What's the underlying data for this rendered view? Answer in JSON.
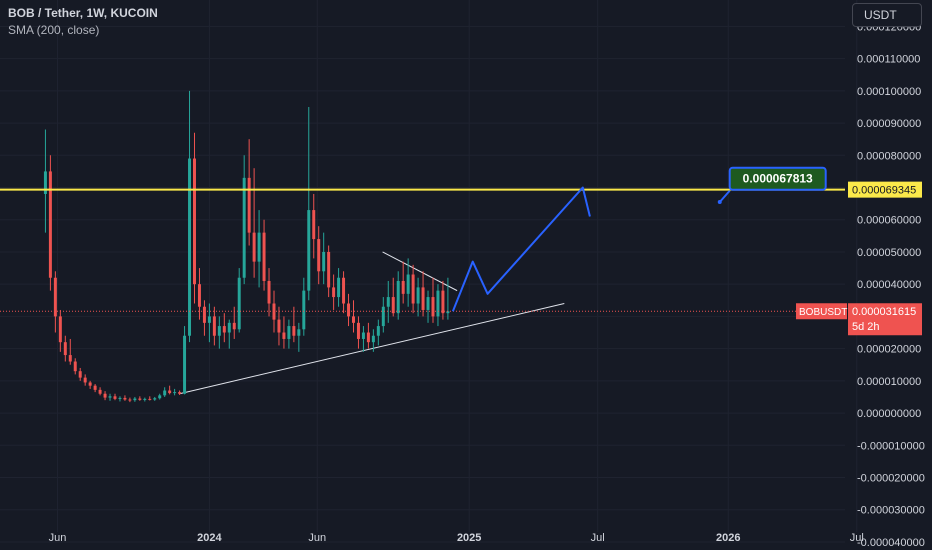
{
  "header": {
    "title": "BOB / Tether, 1W, KUCOIN",
    "indicator": "SMA (200, close)"
  },
  "currency_button": "USDT",
  "colors": {
    "background": "#161a25",
    "grid": "#1f2330",
    "up": "#26a69a",
    "down": "#ef5350",
    "level_line": "#fbe94a",
    "projection": "#2962ff",
    "target_box": "#1e5a20",
    "trendline": "#e0e3eb"
  },
  "chart_data": {
    "type": "candlestick",
    "symbol": "BOBUSDT",
    "y_tick_labels": [
      "0.000120000",
      "0.000110000",
      "0.000100000",
      "0.000090000",
      "0.000080000",
      "0.000070000",
      "0.000060000",
      "0.000050000",
      "0.000040000",
      "0.000030000",
      "0.000020000",
      "0.000010000",
      "0.000000000",
      "-0.000010000",
      "-0.000020000",
      "-0.000030000",
      "-0.000040000"
    ],
    "y_ticks": [
      0.00012,
      0.00011,
      0.0001,
      9e-05,
      8e-05,
      7e-05,
      6e-05,
      5e-05,
      4e-05,
      3e-05,
      2e-05,
      1e-05,
      0,
      -1e-05,
      -2e-05,
      -3e-05,
      -4e-05
    ],
    "ylim": [
      -4.25e-05,
      0.0001282
    ],
    "x_tick_labels": [
      "Jun",
      "2024",
      "Jun",
      "2025",
      "Jul",
      "2026",
      "Jul"
    ],
    "x_ticks": [
      "2023-06-01",
      "2024-01-01",
      "2024-06-01",
      "2025-01-01",
      "2025-07-01",
      "2026-01-01",
      "2026-07-01"
    ],
    "xlim": [
      "2023-03-12",
      "2026-10-15"
    ],
    "price_label": {
      "symbol": "BOBUSDT",
      "value": "0.000031615",
      "countdown": "5d 2h"
    },
    "horizontal_level": {
      "value": 6.9345e-05,
      "label": "0.000069345"
    },
    "target_annotation": {
      "label": "0.000067813"
    },
    "candles": [
      {
        "t": "2023-05-15",
        "o": 6.8e-05,
        "h": 8.8e-05,
        "l": 5.6e-05,
        "c": 7.5e-05
      },
      {
        "t": "2023-05-22",
        "o": 7.5e-05,
        "h": 8e-05,
        "l": 3.8e-05,
        "c": 4.2e-05
      },
      {
        "t": "2023-05-29",
        "o": 4.2e-05,
        "h": 4.4e-05,
        "l": 2.5e-05,
        "c": 3e-05
      },
      {
        "t": "2023-06-05",
        "o": 3e-05,
        "h": 3.2e-05,
        "l": 1.9e-05,
        "c": 2.2e-05
      },
      {
        "t": "2023-06-12",
        "o": 2.2e-05,
        "h": 2.4e-05,
        "l": 1.6e-05,
        "c": 1.8e-05
      },
      {
        "t": "2023-06-19",
        "o": 1.8e-05,
        "h": 2.3e-05,
        "l": 1.5e-05,
        "c": 1.6e-05
      },
      {
        "t": "2023-06-26",
        "o": 1.6e-05,
        "h": 1.7e-05,
        "l": 1.2e-05,
        "c": 1.3e-05
      },
      {
        "t": "2023-07-03",
        "o": 1.3e-05,
        "h": 1.4e-05,
        "l": 1e-05,
        "c": 1.1e-05
      },
      {
        "t": "2023-07-10",
        "o": 1.1e-05,
        "h": 1.2e-05,
        "l": 8.5e-06,
        "c": 9.5e-06
      },
      {
        "t": "2023-07-17",
        "o": 9.5e-06,
        "h": 1e-05,
        "l": 7.5e-06,
        "c": 8.5e-06
      },
      {
        "t": "2023-07-24",
        "o": 8.5e-06,
        "h": 9e-06,
        "l": 6.5e-06,
        "c": 7.2e-06
      },
      {
        "t": "2023-07-31",
        "o": 7.2e-06,
        "h": 8e-06,
        "l": 5.5e-06,
        "c": 6e-06
      },
      {
        "t": "2023-08-07",
        "o": 6e-06,
        "h": 6.8e-06,
        "l": 4e-06,
        "c": 4.8e-06
      },
      {
        "t": "2023-08-14",
        "o": 4.8e-06,
        "h": 6e-06,
        "l": 3.8e-06,
        "c": 5.2e-06
      },
      {
        "t": "2023-08-21",
        "o": 5.2e-06,
        "h": 6e-06,
        "l": 4e-06,
        "c": 4.4e-06
      },
      {
        "t": "2023-08-28",
        "o": 4.4e-06,
        "h": 5.2e-06,
        "l": 3.6e-06,
        "c": 4.7e-06
      },
      {
        "t": "2023-09-04",
        "o": 4.7e-06,
        "h": 5.5e-06,
        "l": 3.8e-06,
        "c": 4.2e-06
      },
      {
        "t": "2023-09-11",
        "o": 4.2e-06,
        "h": 4.8e-06,
        "l": 3.4e-06,
        "c": 4e-06
      },
      {
        "t": "2023-09-18",
        "o": 4e-06,
        "h": 5e-06,
        "l": 3.5e-06,
        "c": 4.5e-06
      },
      {
        "t": "2023-09-25",
        "o": 4.5e-06,
        "h": 5.2e-06,
        "l": 3.8e-06,
        "c": 4.1e-06
      },
      {
        "t": "2023-10-02",
        "o": 4.1e-06,
        "h": 4.8e-06,
        "l": 3.6e-06,
        "c": 4.4e-06
      },
      {
        "t": "2023-10-09",
        "o": 4.4e-06,
        "h": 5.2e-06,
        "l": 3.9e-06,
        "c": 4.2e-06
      },
      {
        "t": "2023-10-16",
        "o": 4.2e-06,
        "h": 5e-06,
        "l": 3.8e-06,
        "c": 4.6e-06
      },
      {
        "t": "2023-10-23",
        "o": 4.6e-06,
        "h": 6e-06,
        "l": 4.2e-06,
        "c": 5.5e-06
      },
      {
        "t": "2023-10-30",
        "o": 5.5e-06,
        "h": 8e-06,
        "l": 5e-06,
        "c": 7e-06
      },
      {
        "t": "2023-11-06",
        "o": 7e-06,
        "h": 8.5e-06,
        "l": 5.8e-06,
        "c": 6.2e-06
      },
      {
        "t": "2023-11-13",
        "o": 6.2e-06,
        "h": 7.5e-06,
        "l": 5.5e-06,
        "c": 6.5e-06
      },
      {
        "t": "2023-11-20",
        "o": 6.5e-06,
        "h": 7e-06,
        "l": 5.6e-06,
        "c": 6e-06
      },
      {
        "t": "2023-11-27",
        "o": 6e-06,
        "h": 2.7e-05,
        "l": 5.8e-06,
        "c": 2.4e-05
      },
      {
        "t": "2023-12-04",
        "o": 2.4e-05,
        "h": 0.0001,
        "l": 2.2e-05,
        "c": 7.9e-05
      },
      {
        "t": "2023-12-11",
        "o": 7.9e-05,
        "h": 8.7e-05,
        "l": 3.4e-05,
        "c": 4e-05
      },
      {
        "t": "2023-12-18",
        "o": 4e-05,
        "h": 4.5e-05,
        "l": 2.9e-05,
        "c": 3.3e-05
      },
      {
        "t": "2023-12-25",
        "o": 3.3e-05,
        "h": 3.5e-05,
        "l": 2.4e-05,
        "c": 2.8e-05
      },
      {
        "t": "2024-01-01",
        "o": 2.8e-05,
        "h": 3.4e-05,
        "l": 2.2e-05,
        "c": 3e-05
      },
      {
        "t": "2024-01-08",
        "o": 3e-05,
        "h": 3.3e-05,
        "l": 2.1e-05,
        "c": 2.4e-05
      },
      {
        "t": "2024-01-15",
        "o": 2.4e-05,
        "h": 3e-05,
        "l": 2e-05,
        "c": 2.7e-05
      },
      {
        "t": "2024-01-22",
        "o": 2.7e-05,
        "h": 3.1e-05,
        "l": 2.2e-05,
        "c": 2.5e-05
      },
      {
        "t": "2024-01-29",
        "o": 2.5e-05,
        "h": 2.9e-05,
        "l": 2e-05,
        "c": 2.8e-05
      },
      {
        "t": "2024-02-05",
        "o": 2.8e-05,
        "h": 3.3e-05,
        "l": 2.3e-05,
        "c": 2.6e-05
      },
      {
        "t": "2024-02-12",
        "o": 2.6e-05,
        "h": 4.5e-05,
        "l": 2.5e-05,
        "c": 4.2e-05
      },
      {
        "t": "2024-02-19",
        "o": 4.2e-05,
        "h": 8e-05,
        "l": 4e-05,
        "c": 7.3e-05
      },
      {
        "t": "2024-02-26",
        "o": 7.3e-05,
        "h": 8.5e-05,
        "l": 5.2e-05,
        "c": 5.6e-05
      },
      {
        "t": "2024-03-04",
        "o": 5.6e-05,
        "h": 7.6e-05,
        "l": 4.2e-05,
        "c": 4.7e-05
      },
      {
        "t": "2024-03-11",
        "o": 4.7e-05,
        "h": 6.3e-05,
        "l": 3.9e-05,
        "c": 5.6e-05
      },
      {
        "t": "2024-03-18",
        "o": 5.6e-05,
        "h": 6e-05,
        "l": 3.8e-05,
        "c": 4.1e-05
      },
      {
        "t": "2024-03-25",
        "o": 4.1e-05,
        "h": 4.5e-05,
        "l": 3e-05,
        "c": 3.4e-05
      },
      {
        "t": "2024-04-01",
        "o": 3.4e-05,
        "h": 3.8e-05,
        "l": 2.5e-05,
        "c": 2.9e-05
      },
      {
        "t": "2024-04-08",
        "o": 2.9e-05,
        "h": 3.3e-05,
        "l": 2.1e-05,
        "c": 2.5e-05
      },
      {
        "t": "2024-04-15",
        "o": 2.5e-05,
        "h": 3e-05,
        "l": 2e-05,
        "c": 2.3e-05
      },
      {
        "t": "2024-04-22",
        "o": 2.3e-05,
        "h": 2.9e-05,
        "l": 2e-05,
        "c": 2.7e-05
      },
      {
        "t": "2024-04-29",
        "o": 2.7e-05,
        "h": 3.3e-05,
        "l": 2.2e-05,
        "c": 2.4e-05
      },
      {
        "t": "2024-05-06",
        "o": 2.4e-05,
        "h": 2.8e-05,
        "l": 1.9e-05,
        "c": 2.6e-05
      },
      {
        "t": "2024-05-13",
        "o": 2.6e-05,
        "h": 4.2e-05,
        "l": 2.4e-05,
        "c": 3.8e-05
      },
      {
        "t": "2024-05-20",
        "o": 3.8e-05,
        "h": 9.5e-05,
        "l": 3.5e-05,
        "c": 6.3e-05
      },
      {
        "t": "2024-05-27",
        "o": 6.3e-05,
        "h": 6.8e-05,
        "l": 4.8e-05,
        "c": 5.4e-05
      },
      {
        "t": "2024-06-03",
        "o": 5.4e-05,
        "h": 5.8e-05,
        "l": 4e-05,
        "c": 4.4e-05
      },
      {
        "t": "2024-06-10",
        "o": 4.4e-05,
        "h": 5.6e-05,
        "l": 4e-05,
        "c": 5e-05
      },
      {
        "t": "2024-06-17",
        "o": 5e-05,
        "h": 5.2e-05,
        "l": 3.6e-05,
        "c": 3.9e-05
      },
      {
        "t": "2024-06-24",
        "o": 3.9e-05,
        "h": 4.3e-05,
        "l": 3.2e-05,
        "c": 3.6e-05
      },
      {
        "t": "2024-07-01",
        "o": 3.6e-05,
        "h": 4.5e-05,
        "l": 3.3e-05,
        "c": 4.2e-05
      },
      {
        "t": "2024-07-08",
        "o": 4.2e-05,
        "h": 4.4e-05,
        "l": 3.1e-05,
        "c": 3.4e-05
      },
      {
        "t": "2024-07-15",
        "o": 3.4e-05,
        "h": 3.7e-05,
        "l": 2.7e-05,
        "c": 3e-05
      },
      {
        "t": "2024-07-22",
        "o": 3e-05,
        "h": 3.5e-05,
        "l": 2.5e-05,
        "c": 2.8e-05
      },
      {
        "t": "2024-07-29",
        "o": 2.8e-05,
        "h": 3e-05,
        "l": 2e-05,
        "c": 2.3e-05
      },
      {
        "t": "2024-08-05",
        "o": 2.3e-05,
        "h": 2.7e-05,
        "l": 1.9e-05,
        "c": 2.5e-05
      },
      {
        "t": "2024-08-12",
        "o": 2.5e-05,
        "h": 2.8e-05,
        "l": 2e-05,
        "c": 2.2e-05
      },
      {
        "t": "2024-08-19",
        "o": 2.2e-05,
        "h": 2.6e-05,
        "l": 1.9e-05,
        "c": 2.4e-05
      },
      {
        "t": "2024-08-26",
        "o": 2.4e-05,
        "h": 2.9e-05,
        "l": 2.1e-05,
        "c": 2.7e-05
      },
      {
        "t": "2024-09-02",
        "o": 2.7e-05,
        "h": 3.6e-05,
        "l": 2.5e-05,
        "c": 3.3e-05
      },
      {
        "t": "2024-09-09",
        "o": 3.3e-05,
        "h": 4.1e-05,
        "l": 2.8e-05,
        "c": 3.6e-05
      },
      {
        "t": "2024-09-16",
        "o": 3.6e-05,
        "h": 4.2e-05,
        "l": 3e-05,
        "c": 3.1e-05
      },
      {
        "t": "2024-09-23",
        "o": 3.1e-05,
        "h": 4.4e-05,
        "l": 2.9e-05,
        "c": 4.1e-05
      },
      {
        "t": "2024-09-30",
        "o": 4.1e-05,
        "h": 4.7e-05,
        "l": 3.4e-05,
        "c": 3.7e-05
      },
      {
        "t": "2024-10-07",
        "o": 3.7e-05,
        "h": 4.8e-05,
        "l": 3.3e-05,
        "c": 4.3e-05
      },
      {
        "t": "2024-10-14",
        "o": 4.3e-05,
        "h": 4.6e-05,
        "l": 3.1e-05,
        "c": 3.4e-05
      },
      {
        "t": "2024-10-21",
        "o": 3.4e-05,
        "h": 4.2e-05,
        "l": 3e-05,
        "c": 3.9e-05
      },
      {
        "t": "2024-10-28",
        "o": 3.9e-05,
        "h": 4.4e-05,
        "l": 3e-05,
        "c": 3.2e-05
      },
      {
        "t": "2024-11-04",
        "o": 3.2e-05,
        "h": 3.8e-05,
        "l": 2.8e-05,
        "c": 3.6e-05
      },
      {
        "t": "2024-11-11",
        "o": 3.6e-05,
        "h": 4.2e-05,
        "l": 2.8e-05,
        "c": 3e-05
      },
      {
        "t": "2024-11-18",
        "o": 3e-05,
        "h": 4e-05,
        "l": 2.7e-05,
        "c": 3.8e-05
      },
      {
        "t": "2024-11-25",
        "o": 3.8e-05,
        "h": 4.1e-05,
        "l": 2.9e-05,
        "c": 3.1e-05
      },
      {
        "t": "2024-12-02",
        "o": 3.1e-05,
        "h": 4.2e-05,
        "l": 2.9e-05,
        "c": 3.16e-05
      }
    ],
    "drawings": {
      "support_trendline": [
        [
          "2023-11-20",
          6e-06
        ],
        [
          "2025-05-15",
          3.4e-05
        ]
      ],
      "resistance_trendline": [
        [
          "2024-09-01",
          5e-05
        ],
        [
          "2024-12-15",
          3.8e-05
        ]
      ],
      "projection_path": [
        [
          "2024-12-09",
          3.16e-05
        ],
        [
          "2025-01-06",
          4.7e-05
        ],
        [
          "2025-01-27",
          3.7e-05
        ],
        [
          "2025-06-10",
          7e-05
        ],
        [
          "2025-06-20",
          6.1e-05
        ]
      ],
      "target_pointer": [
        [
          "2025-12-20",
          6.55e-05
        ],
        [
          "2026-01-03",
          6.9e-05
        ]
      ]
    }
  }
}
